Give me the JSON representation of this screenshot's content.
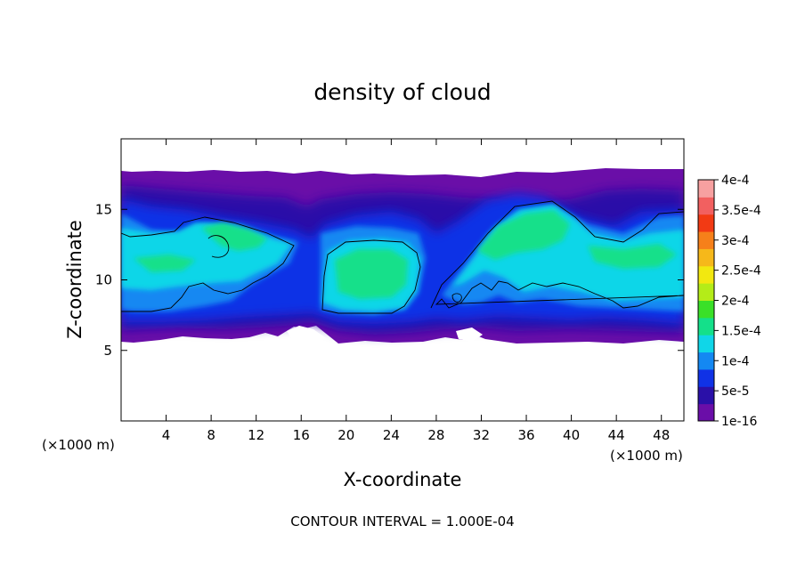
{
  "chart_data": {
    "type": "heatmap",
    "title": "density of cloud",
    "xlabel": "X-coordinate",
    "ylabel": "Z-coordinate",
    "x_unit": "(×1000 m)",
    "z_unit": "(×1000 m)",
    "xlim": [
      0,
      50
    ],
    "ylim": [
      0,
      20
    ],
    "x_ticks": [
      4,
      8,
      12,
      16,
      20,
      24,
      28,
      32,
      36,
      40,
      44,
      48
    ],
    "y_ticks": [
      5,
      10,
      15
    ],
    "colorbar": {
      "ticks": [
        "1e-16",
        "5e-5",
        "1e-4",
        "1.5e-4",
        "2e-4",
        "2.5e-4",
        "3e-4",
        "3.5e-4",
        "4e-4"
      ],
      "colors": [
        "#6a0ea8",
        "#2a10a8",
        "#1032e6",
        "#1488f2",
        "#10d6e8",
        "#14e08a",
        "#3ae028",
        "#b4ec18",
        "#f2e810",
        "#f6b81a",
        "#f6801a",
        "#f23a14",
        "#f26060",
        "#f7a0a0"
      ]
    },
    "footer": "CONTOUR INTERVAL = 1.000E-04",
    "cloud_layer_z": [
      5.6,
      17.6
    ],
    "features": [
      {
        "name": "left cloud band",
        "x": [
          0,
          16
        ],
        "z": [
          7.8,
          14.4
        ],
        "value": 0.00015
      },
      {
        "name": "central cloud cell",
        "x": [
          17.5,
          27
        ],
        "z": [
          7.5,
          12.6
        ],
        "value": 0.00019
      },
      {
        "name": "right rising cell",
        "x": [
          28,
          50
        ],
        "z": [
          7.8,
          15.6
        ],
        "value": 0.00017
      }
    ]
  }
}
